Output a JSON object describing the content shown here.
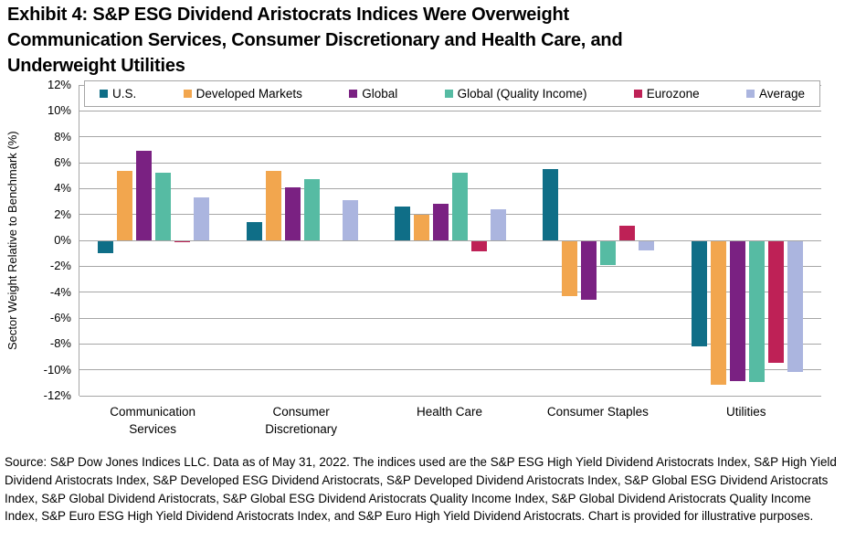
{
  "header": {
    "title_line1": "Exhibit 4: S&P ESG Dividend Aristocrats Indices Were Overweight",
    "title_line2": "Communication Services, Consumer Discretionary and Health Care, and",
    "title_line3": "Underweight Utilities"
  },
  "chart_data": {
    "type": "bar",
    "title": "",
    "xlabel": "",
    "ylabel": "Sector Weight Relative to Benchmark (%)",
    "ylim": [
      -12,
      12
    ],
    "ytick_step": 2,
    "yticks": [
      "12%",
      "10%",
      "8%",
      "6%",
      "4%",
      "2%",
      "0%",
      "-2%",
      "-4%",
      "-6%",
      "-8%",
      "-10%",
      "-12%"
    ],
    "grid": true,
    "legend_position": "top",
    "categories": [
      "Communication Services",
      "Consumer Discretionary",
      "Health Care",
      "Consumer Staples",
      "Utilities"
    ],
    "series": [
      {
        "name": "U.S.",
        "color": "#0F6E87",
        "values": [
          -0.9,
          1.4,
          2.6,
          5.5,
          -8.1
        ]
      },
      {
        "name": "Developed Markets",
        "color": "#F2A64E",
        "values": [
          5.4,
          5.4,
          2.0,
          -4.2,
          -11.1
        ]
      },
      {
        "name": "Global",
        "color": "#7A2182",
        "values": [
          6.9,
          4.1,
          2.8,
          -4.5,
          -10.8
        ]
      },
      {
        "name": "Global (Quality Income)",
        "color": "#56BBA3",
        "values": [
          5.2,
          4.7,
          5.2,
          -1.8,
          -10.9
        ]
      },
      {
        "name": "Eurozone",
        "color": "#BE2156",
        "values": [
          -0.1,
          0.0,
          -0.8,
          1.1,
          -9.4
        ]
      },
      {
        "name": "Average",
        "color": "#ABB5DF",
        "values": [
          3.3,
          3.1,
          2.4,
          -0.7,
          -10.1
        ]
      }
    ],
    "axis_color": "#A6A6A6"
  },
  "footer": {
    "source_text": "Source: S&P Dow Jones Indices LLC. Data as of May 31, 2022. The indices used are the S&P ESG High Yield Dividend Aristocrats Index, S&P High Yield Dividend Aristocrats Index, S&P Developed ESG Dividend Aristocrats, S&P Developed Dividend Aristocrats Index, S&P Global ESG Dividend Aristocrats Index, S&P Global Dividend Aristocrats, S&P Global ESG Dividend Aristocrats Quality Income Index, S&P Global Dividend Aristocrats Quality Income Index, S&P Euro ESG High Yield Dividend Aristocrats Index, and S&P Euro High Yield Dividend Aristocrats. Chart is provided for illustrative purposes."
  }
}
